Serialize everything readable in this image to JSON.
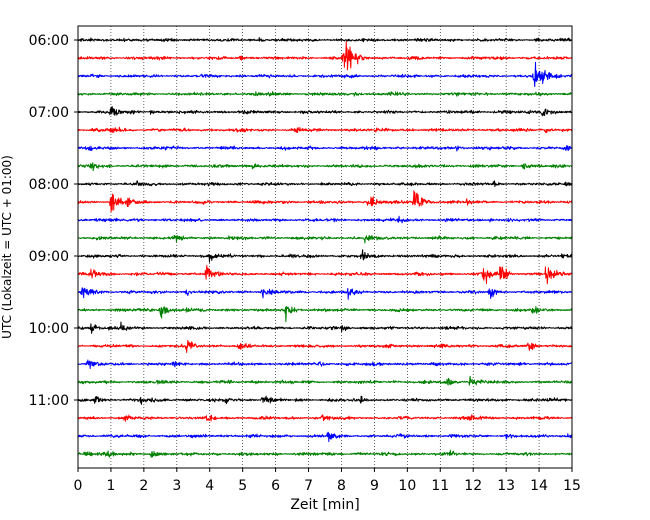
{
  "chart_data": {
    "type": "line",
    "title": "",
    "xlabel": "Zeit  [min]",
    "ylabel": "UTC (Lokalzeit = UTC + 01:00)",
    "xlim": [
      0,
      15
    ],
    "x_ticks": [
      0,
      1,
      2,
      3,
      4,
      5,
      6,
      7,
      8,
      9,
      10,
      11,
      12,
      13,
      14,
      15
    ],
    "x_tick_labels": [
      "0",
      "1",
      "2",
      "3",
      "4",
      "5",
      "6",
      "7",
      "8",
      "9",
      "10",
      "11",
      "12",
      "13",
      "14",
      "15"
    ],
    "y_tick_labels": [
      "06:00",
      "07:00",
      "08:00",
      "09:00",
      "10:00",
      "11:00"
    ],
    "trace_interval_min": 15,
    "grid": "vertical-dotted",
    "trace_colors": [
      "#000000",
      "#ff0000",
      "#0000ff",
      "#008000"
    ],
    "series": [
      {
        "start": "06:00",
        "color": "#000000",
        "events": [
          [
            1.4,
            0.5
          ],
          [
            5.5,
            0.3
          ],
          [
            13.9,
            0.3
          ]
        ]
      },
      {
        "start": "06:15",
        "color": "#ff0000",
        "events": [
          [
            8.05,
            1.8
          ],
          [
            8.15,
            1.2
          ],
          [
            4.9,
            0.35
          ]
        ]
      },
      {
        "start": "06:30",
        "color": "#0000ff",
        "events": [
          [
            13.85,
            2.2
          ],
          [
            0.4,
            0.2
          ]
        ]
      },
      {
        "start": "06:45",
        "color": "#008000",
        "events": [
          [
            8.4,
            0.5
          ],
          [
            5.8,
            0.4
          ],
          [
            9.5,
            0.3
          ]
        ]
      },
      {
        "start": "07:00",
        "color": "#000000",
        "events": [
          [
            1.0,
            0.9
          ],
          [
            14.1,
            0.8
          ],
          [
            2.2,
            0.3
          ]
        ]
      },
      {
        "start": "07:15",
        "color": "#ff0000",
        "events": [
          [
            1.0,
            0.6
          ],
          [
            6.6,
            0.3
          ],
          [
            14.2,
            0.3
          ]
        ]
      },
      {
        "start": "07:30",
        "color": "#0000ff",
        "events": [
          [
            0.3,
            0.3
          ],
          [
            11.5,
            0.3
          ],
          [
            14.8,
            0.35
          ]
        ]
      },
      {
        "start": "07:45",
        "color": "#008000",
        "events": [
          [
            0.4,
            0.5
          ],
          [
            5.3,
            0.4
          ],
          [
            13.5,
            0.5
          ]
        ]
      },
      {
        "start": "08:00",
        "color": "#000000",
        "events": [
          [
            1.8,
            0.4
          ],
          [
            12.6,
            0.4
          ],
          [
            14.8,
            0.5
          ]
        ]
      },
      {
        "start": "08:15",
        "color": "#ff0000",
        "events": [
          [
            1.0,
            1.6
          ],
          [
            10.2,
            1.6
          ],
          [
            8.8,
            1.2
          ],
          [
            1.5,
            0.6
          ],
          [
            11.8,
            0.5
          ]
        ]
      },
      {
        "start": "08:30",
        "color": "#0000ff",
        "events": [
          [
            9.7,
            0.6
          ],
          [
            0.5,
            0.3
          ],
          [
            12.5,
            0.3
          ]
        ]
      },
      {
        "start": "08:45",
        "color": "#008000",
        "events": [
          [
            8.7,
            0.7
          ],
          [
            2.9,
            0.4
          ],
          [
            4.6,
            0.3
          ]
        ]
      },
      {
        "start": "09:00",
        "color": "#000000",
        "events": [
          [
            8.6,
            0.9
          ],
          [
            4.0,
            0.8
          ],
          [
            14.7,
            0.4
          ]
        ]
      },
      {
        "start": "09:15",
        "color": "#ff0000",
        "events": [
          [
            12.3,
            1.5
          ],
          [
            14.2,
            1.4
          ],
          [
            3.9,
            1.1
          ],
          [
            0.4,
            0.8
          ],
          [
            12.8,
            1.0
          ]
        ]
      },
      {
        "start": "09:30",
        "color": "#0000ff",
        "events": [
          [
            0.1,
            1.2
          ],
          [
            5.6,
            0.7
          ],
          [
            8.2,
            0.7
          ],
          [
            12.5,
            0.8
          ],
          [
            3.3,
            0.5
          ]
        ]
      },
      {
        "start": "09:45",
        "color": "#008000",
        "events": [
          [
            2.5,
            1.1
          ],
          [
            6.3,
            1.0
          ],
          [
            13.8,
            0.6
          ],
          [
            3.3,
            0.4
          ]
        ]
      },
      {
        "start": "10:00",
        "color": "#000000",
        "events": [
          [
            0.4,
            0.9
          ],
          [
            1.3,
            0.5
          ],
          [
            8.0,
            0.4
          ]
        ]
      },
      {
        "start": "10:15",
        "color": "#ff0000",
        "events": [
          [
            3.3,
            0.9
          ],
          [
            13.7,
            0.8
          ],
          [
            4.9,
            0.4
          ]
        ]
      },
      {
        "start": "10:30",
        "color": "#0000ff",
        "events": [
          [
            0.3,
            0.7
          ],
          [
            2.9,
            0.4
          ],
          [
            7.3,
            0.3
          ]
        ]
      },
      {
        "start": "10:45",
        "color": "#008000",
        "events": [
          [
            11.2,
            0.8
          ],
          [
            11.9,
            0.8
          ],
          [
            2.4,
            0.4
          ],
          [
            5.4,
            0.4
          ]
        ]
      },
      {
        "start": "11:00",
        "color": "#000000",
        "events": [
          [
            0.5,
            0.8
          ],
          [
            5.6,
            1.0
          ],
          [
            8.6,
            0.6
          ],
          [
            4.5,
            0.5
          ],
          [
            1.9,
            0.5
          ]
        ]
      },
      {
        "start": "11:15",
        "color": "#ff0000",
        "events": [
          [
            3.9,
            0.5
          ],
          [
            7.4,
            0.5
          ],
          [
            1.4,
            0.4
          ],
          [
            11.9,
            0.4
          ]
        ]
      },
      {
        "start": "11:30",
        "color": "#0000ff",
        "events": [
          [
            7.6,
            0.6
          ],
          [
            9.8,
            0.6
          ],
          [
            13.0,
            0.4
          ],
          [
            14.9,
            0.4
          ]
        ]
      },
      {
        "start": "11:45",
        "color": "#008000",
        "events": [
          [
            0.2,
            0.7
          ],
          [
            2.2,
            0.6
          ],
          [
            0.9,
            0.4
          ],
          [
            11.3,
            0.3
          ]
        ]
      }
    ]
  }
}
